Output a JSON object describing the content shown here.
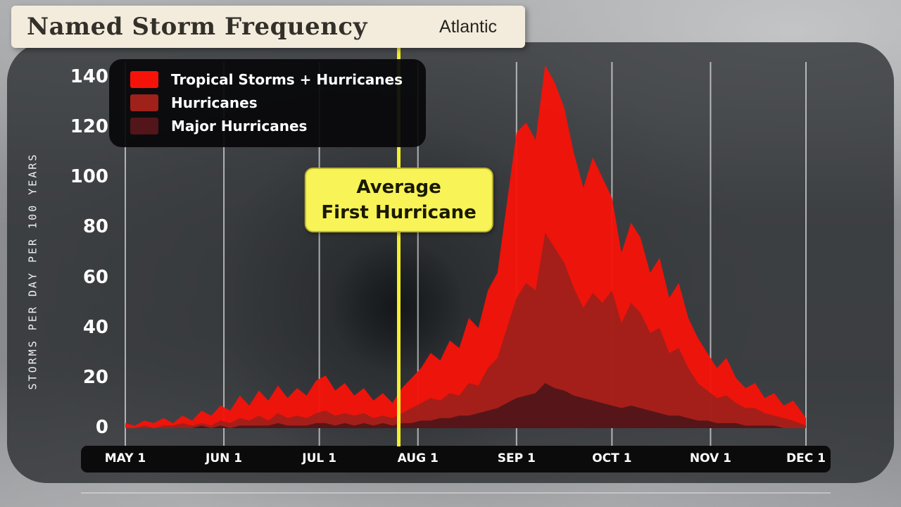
{
  "header": {
    "title": "Named Storm Frequency",
    "region": "Atlantic"
  },
  "y_axis": {
    "label": "STORMS PER DAY PER 100 YEARS"
  },
  "x_axis": {
    "labels": [
      "MAY 1",
      "JUN 1",
      "JUL 1",
      "AUG 1",
      "SEP 1",
      "OCT 1",
      "NOV 1",
      "DEC 1"
    ]
  },
  "legend": {
    "items": [
      {
        "label": "Tropical Storms + Hurricanes",
        "color": "#f51309"
      },
      {
        "label": "Hurricanes",
        "color": "#a0201a"
      },
      {
        "label": "Major Hurricanes",
        "color": "#521519"
      }
    ]
  },
  "annotation": {
    "line_day": 86,
    "text_line1": "Average",
    "text_line2": "First Hurricane",
    "line_color": "#f4ef2e",
    "box_color": "#f8f356"
  },
  "chart_data": {
    "type": "area",
    "title": "Named Storm Frequency",
    "subtitle": "Atlantic",
    "xlabel": "",
    "ylabel": "STORMS PER DAY PER 100 YEARS",
    "x_unit": "days since May 1",
    "month_days": [
      0,
      31,
      61,
      92,
      123,
      153,
      184,
      214
    ],
    "month_labels": [
      "MAY 1",
      "JUN 1",
      "JUL 1",
      "AUG 1",
      "SEP 1",
      "OCT 1",
      "NOV 1",
      "DEC 1"
    ],
    "ylim": [
      0,
      150
    ],
    "yticks": [
      0,
      20,
      40,
      60,
      80,
      100,
      120,
      140
    ],
    "grid": "vertical monthly gridlines",
    "legend_position": "top-left",
    "days": [
      0,
      3,
      6,
      9,
      12,
      15,
      18,
      21,
      24,
      27,
      30,
      33,
      36,
      39,
      42,
      45,
      48,
      51,
      54,
      57,
      60,
      63,
      66,
      69,
      72,
      75,
      78,
      81,
      84,
      87,
      90,
      93,
      96,
      99,
      102,
      105,
      108,
      111,
      114,
      117,
      120,
      123,
      126,
      129,
      132,
      135,
      138,
      141,
      144,
      147,
      150,
      153,
      156,
      159,
      162,
      165,
      168,
      171,
      174,
      177,
      180,
      183,
      186,
      189,
      192,
      195,
      198,
      201,
      204,
      207,
      210,
      214
    ],
    "series": [
      {
        "name": "Tropical Storms + Hurricanes",
        "color": "#f51309",
        "values": [
          2,
          1,
          3,
          2,
          4,
          2,
          5,
          3,
          7,
          5,
          9,
          7,
          13,
          9,
          15,
          11,
          17,
          12,
          16,
          13,
          19,
          21,
          15,
          18,
          13,
          16,
          11,
          14,
          10,
          16,
          20,
          24,
          30,
          27,
          35,
          32,
          44,
          40,
          55,
          62,
          90,
          118,
          122,
          115,
          145,
          138,
          128,
          110,
          96,
          108,
          100,
          92,
          70,
          82,
          76,
          62,
          68,
          52,
          58,
          44,
          36,
          30,
          24,
          28,
          20,
          16,
          18,
          12,
          14,
          9,
          11,
          4
        ]
      },
      {
        "name": "Hurricanes",
        "color": "#a0201a",
        "values": [
          0,
          0,
          1,
          0,
          1,
          1,
          2,
          1,
          2,
          1,
          3,
          2,
          4,
          3,
          5,
          3,
          6,
          4,
          5,
          4,
          6,
          7,
          5,
          6,
          5,
          6,
          4,
          5,
          4,
          6,
          8,
          10,
          12,
          11,
          14,
          13,
          18,
          17,
          24,
          28,
          40,
          52,
          58,
          55,
          78,
          72,
          66,
          56,
          48,
          54,
          50,
          55,
          42,
          50,
          46,
          38,
          40,
          30,
          32,
          24,
          18,
          15,
          12,
          13,
          10,
          8,
          8,
          6,
          5,
          4,
          3,
          1
        ]
      },
      {
        "name": "Major Hurricanes",
        "color": "#521519",
        "values": [
          0,
          0,
          0,
          0,
          0,
          0,
          0,
          0,
          1,
          0,
          1,
          0,
          1,
          1,
          1,
          1,
          2,
          1,
          1,
          1,
          2,
          2,
          1,
          2,
          1,
          2,
          1,
          2,
          1,
          2,
          2,
          3,
          3,
          4,
          4,
          5,
          5,
          6,
          7,
          8,
          10,
          12,
          13,
          14,
          18,
          16,
          15,
          13,
          12,
          11,
          10,
          9,
          8,
          9,
          8,
          7,
          6,
          5,
          5,
          4,
          3,
          3,
          2,
          2,
          2,
          1,
          1,
          1,
          1,
          0,
          0,
          0
        ]
      }
    ]
  }
}
